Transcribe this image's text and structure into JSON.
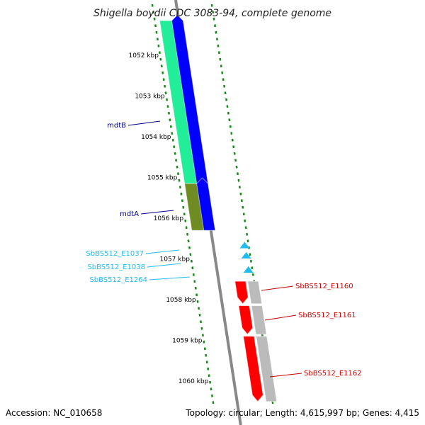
{
  "title": "Shigella boydii CDC 3083-94, complete genome",
  "footer": {
    "accession": "Accession: NC_010658",
    "summary": "Topology: circular; Length: 4,615,997 bp; Genes: 4,415"
  },
  "colors": {
    "cds_fwd": "#0000ff",
    "cds_rev": "#ff0000",
    "cog_green": "#22ee99",
    "cog_olive": "#6e8c22",
    "cog_grey": "#bbbbbb",
    "backbone": "#888888",
    "dots": "#1a8a1a",
    "label_dark": "#00008b",
    "label_cyan": "#22bbee",
    "label_red": "#cc0000"
  },
  "ticks": [
    {
      "kbp": 1052,
      "label": "1052 kbp"
    },
    {
      "kbp": 1053,
      "label": "1053 kbp"
    },
    {
      "kbp": 1054,
      "label": "1054 kbp"
    },
    {
      "kbp": 1055,
      "label": "1055 kbp"
    },
    {
      "kbp": 1056,
      "label": "1056 kbp"
    },
    {
      "kbp": 1057,
      "label": "1057 kbp"
    },
    {
      "kbp": 1058,
      "label": "1058 kbp"
    },
    {
      "kbp": 1059,
      "label": "1059 kbp"
    },
    {
      "kbp": 1060,
      "label": "1060 kbp"
    }
  ],
  "genes": [
    {
      "name": "mdtB",
      "strand": "+",
      "start_kbp": 1051.15,
      "end_kbp": 1055.15,
      "label_group": "dark"
    },
    {
      "name": "mdtA",
      "strand": "+",
      "start_kbp": 1055.15,
      "end_kbp": 1056.3,
      "label_group": "dark"
    },
    {
      "name": "SbBS512_E1037",
      "strand": "+",
      "start_kbp": 1056.6,
      "end_kbp": 1056.7,
      "label_group": "cyan"
    },
    {
      "name": "SbBS512_E1038",
      "strand": "+",
      "start_kbp": 1056.85,
      "end_kbp": 1056.95,
      "label_group": "cyan"
    },
    {
      "name": "SbBS512_E1264",
      "strand": "+",
      "start_kbp": 1057.2,
      "end_kbp": 1057.3,
      "label_group": "cyan"
    },
    {
      "name": "SbBS512_E1160",
      "strand": "-",
      "start_kbp": 1057.55,
      "end_kbp": 1058.1,
      "label_group": "red"
    },
    {
      "name": "SbBS512_E1161",
      "strand": "-",
      "start_kbp": 1058.15,
      "end_kbp": 1058.85,
      "label_group": "red"
    },
    {
      "name": "SbBS512_E1162",
      "strand": "-",
      "start_kbp": 1058.9,
      "end_kbp": 1060.5,
      "label_group": "red"
    }
  ]
}
